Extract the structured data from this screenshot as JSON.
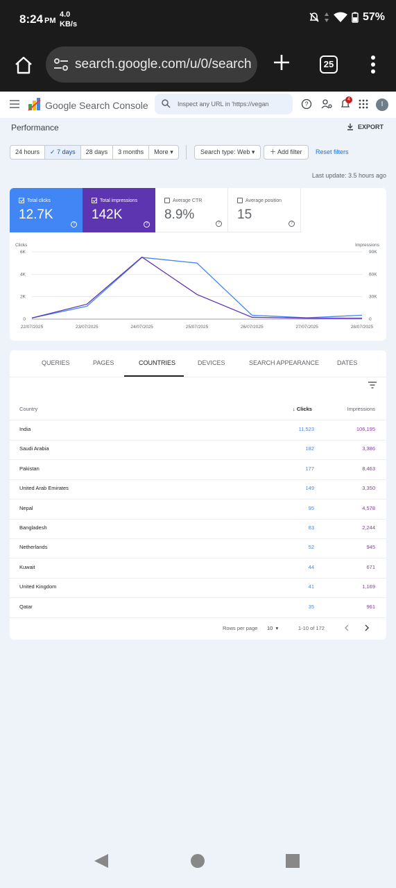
{
  "status_bar": {
    "time": "8:24",
    "ampm": "PM",
    "speed_top": "4.0",
    "speed_bottom": "KB/s",
    "battery": "57%"
  },
  "browser": {
    "url": "search.google.com/u/0/search",
    "tab_count": "25"
  },
  "gsc": {
    "product": "Google Search Console",
    "inspect_placeholder": "Inspect any URL in 'https://vegan",
    "notification_count": "4",
    "avatar_letter": "I",
    "page_title": "Performance",
    "export_label": "EXPORT"
  },
  "filters": {
    "date_options": [
      "24 hours",
      "7 days",
      "28 days",
      "3 months",
      "More"
    ],
    "active_date": "7 days",
    "search_type": "Search type: Web",
    "add_filter": "Add filter",
    "reset": "Reset filters",
    "last_update": "Last update: 3.5 hours ago"
  },
  "metrics": [
    {
      "label": "Total clicks",
      "value": "12.7K",
      "checked": true,
      "color": "#4285f4"
    },
    {
      "label": "Total impressions",
      "value": "142K",
      "checked": true,
      "color": "#5e35b1"
    },
    {
      "label": "Average CTR",
      "value": "8.9%",
      "checked": false,
      "color": "#ffffff"
    },
    {
      "label": "Average position",
      "value": "15",
      "checked": false,
      "color": "#ffffff"
    }
  ],
  "chart_data": {
    "type": "line",
    "x": [
      "22/07/2025",
      "23/07/2025",
      "24/07/2025",
      "25/07/2025",
      "26/07/2025",
      "27/07/2025",
      "28/07/2025"
    ],
    "y_left_label": "Clicks",
    "y_right_label": "Impressions",
    "y_left_ticks": [
      "6K",
      "4K",
      "2K",
      "0"
    ],
    "y_right_ticks": [
      "90K",
      "60K",
      "30K",
      "0"
    ],
    "ylim_left": [
      0,
      6000
    ],
    "ylim_right": [
      0,
      90000
    ],
    "series": [
      {
        "name": "Clicks",
        "axis": "left",
        "color": "#4285f4",
        "values": [
          100,
          1150,
          5500,
          5000,
          350,
          120,
          350
        ]
      },
      {
        "name": "Impressions",
        "axis": "right",
        "color": "#5e35b1",
        "values": [
          1500,
          20000,
          83000,
          33000,
          2500,
          1200,
          1200
        ]
      }
    ]
  },
  "tabs": [
    "QUERIES",
    "PAGES",
    "COUNTRIES",
    "DEVICES",
    "SEARCH APPEARANCE",
    "DATES"
  ],
  "active_tab": "COUNTRIES",
  "table": {
    "headers": {
      "country": "Country",
      "clicks": "Clicks",
      "impressions": "Impressions"
    },
    "rows": [
      {
        "country": "India",
        "clicks": "11,523",
        "impressions": "106,195"
      },
      {
        "country": "Saudi Arabia",
        "clicks": "182",
        "impressions": "3,386"
      },
      {
        "country": "Pakistan",
        "clicks": "177",
        "impressions": "8,463"
      },
      {
        "country": "United Arab Emirates",
        "clicks": "149",
        "impressions": "3,350"
      },
      {
        "country": "Nepal",
        "clicks": "95",
        "impressions": "4,578"
      },
      {
        "country": "Bangladesh",
        "clicks": "83",
        "impressions": "2,244"
      },
      {
        "country": "Netherlands",
        "clicks": "52",
        "impressions": "945"
      },
      {
        "country": "Kuwait",
        "clicks": "44",
        "impressions": "671"
      },
      {
        "country": "United Kingdom",
        "clicks": "41",
        "impressions": "1,169"
      },
      {
        "country": "Qatar",
        "clicks": "35",
        "impressions": "961"
      }
    ],
    "pagination": {
      "rows_label": "Rows per page",
      "rows_value": "10",
      "range": "1-10 of 172"
    }
  }
}
